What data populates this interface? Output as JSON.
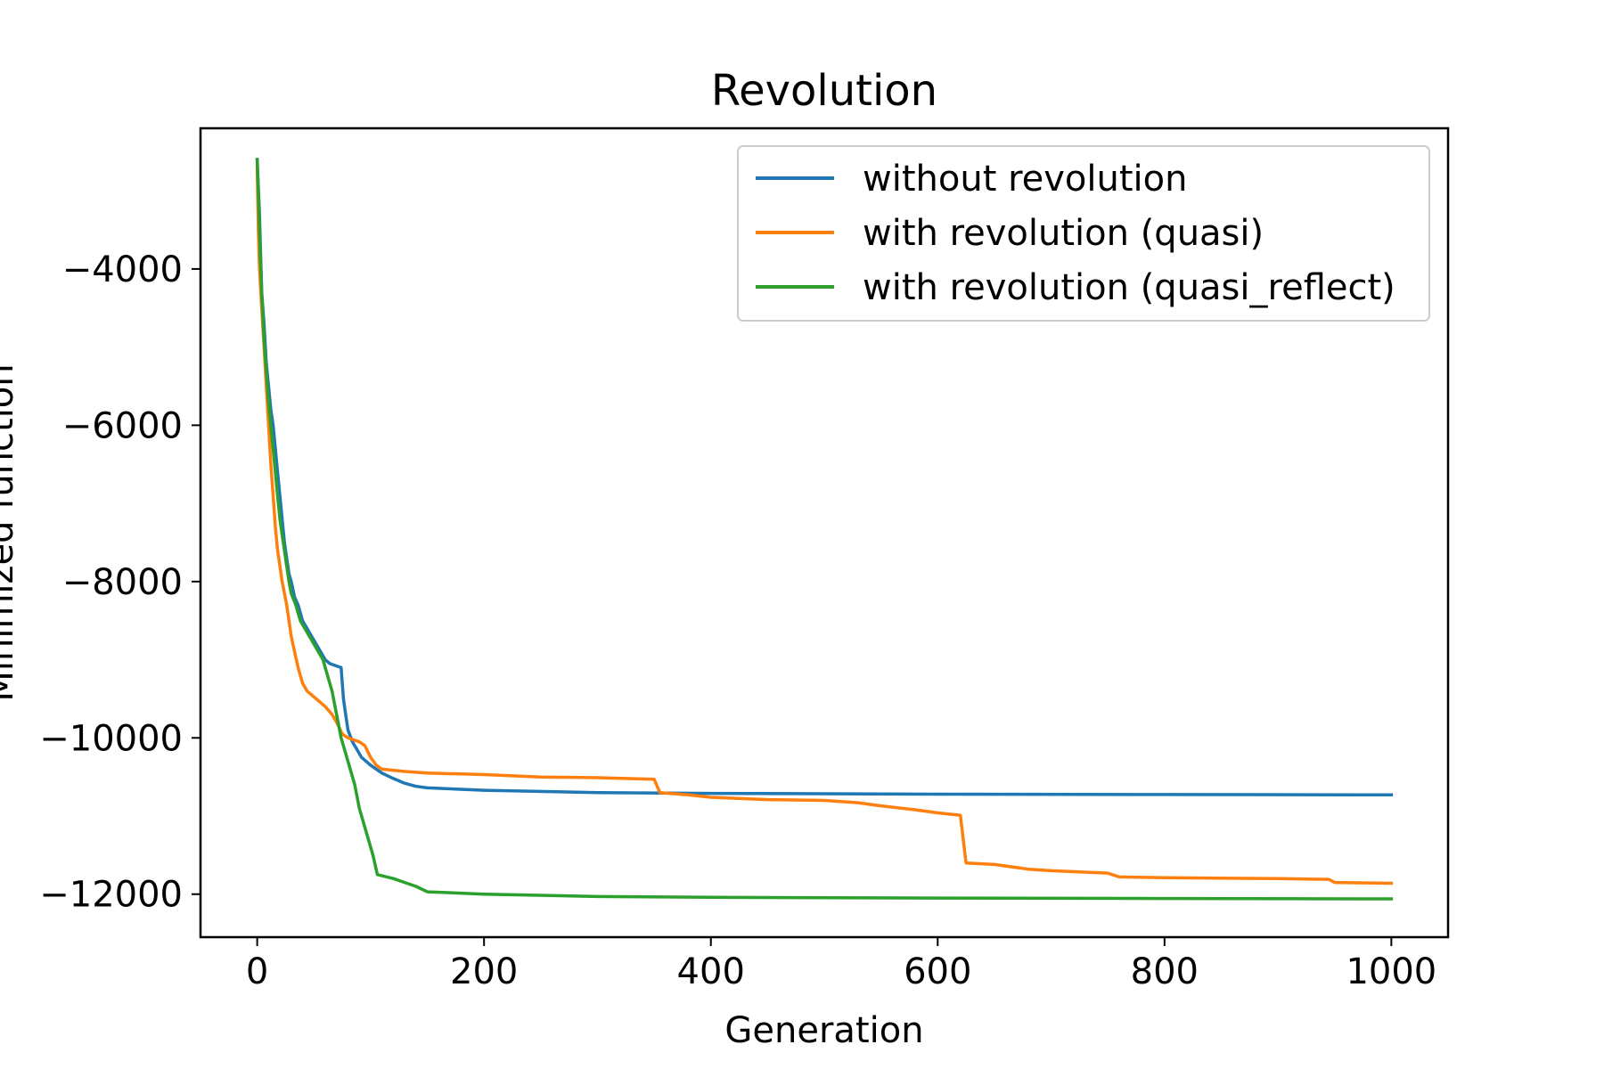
{
  "chart_data": {
    "type": "line",
    "title": "Revolution",
    "xlabel": "Generation",
    "ylabel": "Minimized function",
    "xlim": [
      -50,
      1050
    ],
    "ylim": [
      -12550,
      -2200
    ],
    "grid": false,
    "legend_position": "top-right",
    "x_ticks": [
      {
        "value": 0,
        "label": "0"
      },
      {
        "value": 200,
        "label": "200"
      },
      {
        "value": 400,
        "label": "400"
      },
      {
        "value": 600,
        "label": "600"
      },
      {
        "value": 800,
        "label": "800"
      },
      {
        "value": 1000,
        "label": "1000"
      }
    ],
    "y_ticks": [
      {
        "value": -12000,
        "label": "−12000"
      },
      {
        "value": -10000,
        "label": "−10000"
      },
      {
        "value": -8000,
        "label": "−8000"
      },
      {
        "value": -6000,
        "label": "−6000"
      },
      {
        "value": -4000,
        "label": "−4000"
      }
    ],
    "series": [
      {
        "name": "without revolution",
        "color": "#1f77b4",
        "points": [
          [
            0,
            -2600
          ],
          [
            2,
            -3300
          ],
          [
            4,
            -4300
          ],
          [
            6,
            -4700
          ],
          [
            8,
            -5200
          ],
          [
            10,
            -5500
          ],
          [
            12,
            -5800
          ],
          [
            14,
            -6000
          ],
          [
            16,
            -6300
          ],
          [
            18,
            -6600
          ],
          [
            20,
            -6900
          ],
          [
            22,
            -7200
          ],
          [
            24,
            -7500
          ],
          [
            26,
            -7700
          ],
          [
            28,
            -7900
          ],
          [
            30,
            -8000
          ],
          [
            33,
            -8200
          ],
          [
            36,
            -8300
          ],
          [
            40,
            -8500
          ],
          [
            44,
            -8600
          ],
          [
            48,
            -8700
          ],
          [
            52,
            -8800
          ],
          [
            56,
            -8900
          ],
          [
            60,
            -9000
          ],
          [
            64,
            -9050
          ],
          [
            70,
            -9080
          ],
          [
            74,
            -9100
          ],
          [
            76,
            -9500
          ],
          [
            78,
            -9700
          ],
          [
            80,
            -9900
          ],
          [
            84,
            -10050
          ],
          [
            88,
            -10150
          ],
          [
            92,
            -10250
          ],
          [
            96,
            -10300
          ],
          [
            100,
            -10350
          ],
          [
            110,
            -10450
          ],
          [
            120,
            -10520
          ],
          [
            130,
            -10580
          ],
          [
            140,
            -10620
          ],
          [
            150,
            -10640
          ],
          [
            200,
            -10670
          ],
          [
            300,
            -10700
          ],
          [
            400,
            -10710
          ],
          [
            600,
            -10720
          ],
          [
            800,
            -10725
          ],
          [
            1000,
            -10730
          ]
        ]
      },
      {
        "name": "with revolution (quasi)",
        "color": "#ff7f0e",
        "points": [
          [
            0,
            -2700
          ],
          [
            1,
            -3500
          ],
          [
            2,
            -4000
          ],
          [
            4,
            -4500
          ],
          [
            6,
            -5000
          ],
          [
            8,
            -5500
          ],
          [
            10,
            -6000
          ],
          [
            12,
            -6500
          ],
          [
            14,
            -6900
          ],
          [
            16,
            -7300
          ],
          [
            18,
            -7600
          ],
          [
            20,
            -7800
          ],
          [
            22,
            -8000
          ],
          [
            24,
            -8150
          ],
          [
            26,
            -8300
          ],
          [
            28,
            -8500
          ],
          [
            30,
            -8700
          ],
          [
            33,
            -8900
          ],
          [
            36,
            -9100
          ],
          [
            40,
            -9300
          ],
          [
            44,
            -9400
          ],
          [
            48,
            -9450
          ],
          [
            52,
            -9500
          ],
          [
            56,
            -9550
          ],
          [
            60,
            -9600
          ],
          [
            66,
            -9700
          ],
          [
            70,
            -9800
          ],
          [
            75,
            -9950
          ],
          [
            80,
            -10000
          ],
          [
            90,
            -10050
          ],
          [
            95,
            -10100
          ],
          [
            100,
            -10250
          ],
          [
            105,
            -10350
          ],
          [
            110,
            -10400
          ],
          [
            130,
            -10430
          ],
          [
            150,
            -10450
          ],
          [
            200,
            -10470
          ],
          [
            250,
            -10500
          ],
          [
            300,
            -10510
          ],
          [
            350,
            -10530
          ],
          [
            355,
            -10700
          ],
          [
            380,
            -10730
          ],
          [
            400,
            -10760
          ],
          [
            450,
            -10790
          ],
          [
            500,
            -10800
          ],
          [
            530,
            -10830
          ],
          [
            550,
            -10870
          ],
          [
            580,
            -10920
          ],
          [
            600,
            -10960
          ],
          [
            620,
            -10990
          ],
          [
            625,
            -11600
          ],
          [
            650,
            -11620
          ],
          [
            680,
            -11680
          ],
          [
            700,
            -11700
          ],
          [
            750,
            -11730
          ],
          [
            760,
            -11780
          ],
          [
            800,
            -11790
          ],
          [
            900,
            -11800
          ],
          [
            945,
            -11810
          ],
          [
            950,
            -11850
          ],
          [
            1000,
            -11860
          ]
        ]
      },
      {
        "name": "with revolution (quasi_reflect)",
        "color": "#2ca02c",
        "points": [
          [
            0,
            -2600
          ],
          [
            1,
            -3000
          ],
          [
            2,
            -3500
          ],
          [
            4,
            -4300
          ],
          [
            6,
            -4900
          ],
          [
            8,
            -5300
          ],
          [
            10,
            -5700
          ],
          [
            12,
            -6000
          ],
          [
            14,
            -6300
          ],
          [
            16,
            -6600
          ],
          [
            18,
            -6900
          ],
          [
            20,
            -7200
          ],
          [
            22,
            -7400
          ],
          [
            24,
            -7600
          ],
          [
            26,
            -7800
          ],
          [
            28,
            -8000
          ],
          [
            30,
            -8150
          ],
          [
            34,
            -8300
          ],
          [
            38,
            -8500
          ],
          [
            42,
            -8600
          ],
          [
            46,
            -8700
          ],
          [
            50,
            -8800
          ],
          [
            54,
            -8900
          ],
          [
            58,
            -9000
          ],
          [
            62,
            -9200
          ],
          [
            66,
            -9400
          ],
          [
            70,
            -9700
          ],
          [
            74,
            -10000
          ],
          [
            78,
            -10200
          ],
          [
            82,
            -10400
          ],
          [
            86,
            -10600
          ],
          [
            90,
            -10900
          ],
          [
            94,
            -11100
          ],
          [
            98,
            -11300
          ],
          [
            102,
            -11500
          ],
          [
            106,
            -11750
          ],
          [
            120,
            -11800
          ],
          [
            130,
            -11850
          ],
          [
            140,
            -11900
          ],
          [
            150,
            -11970
          ],
          [
            200,
            -12000
          ],
          [
            300,
            -12030
          ],
          [
            400,
            -12040
          ],
          [
            600,
            -12050
          ],
          [
            800,
            -12055
          ],
          [
            1000,
            -12060
          ]
        ]
      }
    ]
  }
}
